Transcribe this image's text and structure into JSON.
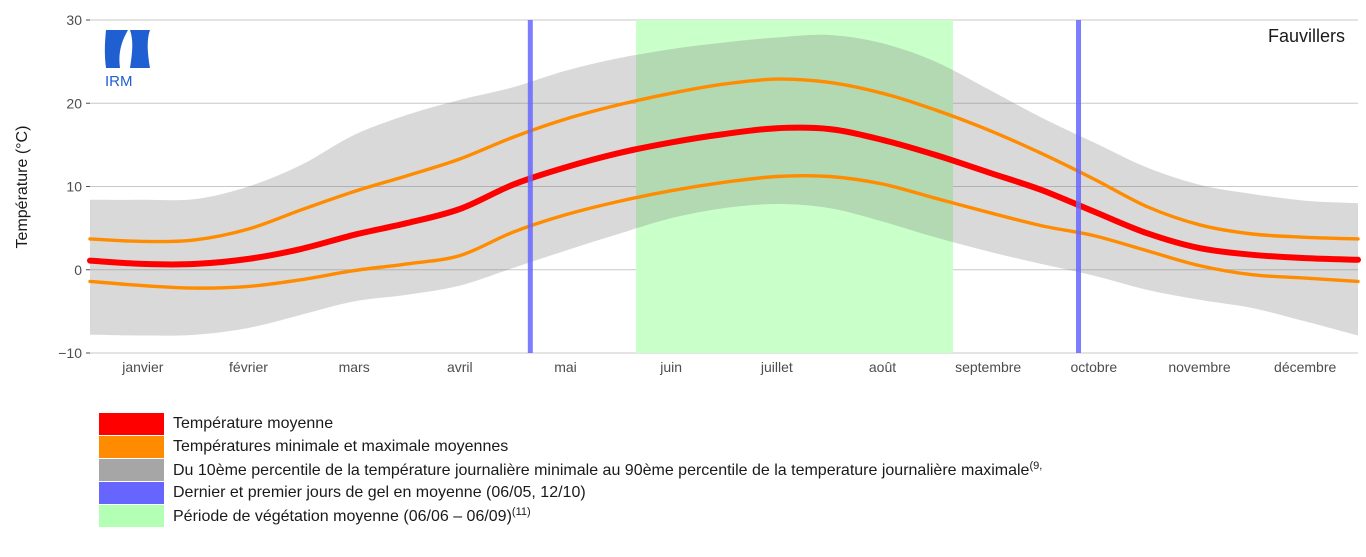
{
  "chart_data": {
    "type": "area",
    "station": "Fauvillers",
    "ylabel": "Température (°C)",
    "ylim": [
      -10,
      30
    ],
    "yticks": [
      -10,
      0,
      10,
      20,
      30
    ],
    "ytick_labels": [
      "−10",
      "0",
      "10",
      "20",
      "30"
    ],
    "grid": true,
    "x_domain": [
      0,
      12
    ],
    "months": [
      "janvier",
      "février",
      "mars",
      "avril",
      "mai",
      "juin",
      "juillet",
      "août",
      "septembre",
      "octobre",
      "novembre",
      "décembre"
    ],
    "x": [
      0,
      0.5,
      1,
      1.5,
      2,
      2.5,
      3,
      3.5,
      4,
      4.5,
      5,
      5.5,
      6,
      6.5,
      7,
      7.5,
      8,
      8.5,
      9,
      9.5,
      10,
      10.5,
      11,
      11.5,
      12
    ],
    "series": [
      {
        "name": "Température moyenne",
        "color": "#ff0000",
        "values": [
          1.1,
          0.7,
          0.7,
          1.3,
          2.5,
          4.2,
          5.6,
          7.3,
          10.2,
          12.3,
          14.0,
          15.3,
          16.3,
          17.0,
          16.9,
          15.6,
          13.8,
          11.7,
          9.6,
          7.0,
          4.4,
          2.6,
          1.8,
          1.4,
          1.2
        ]
      },
      {
        "name": "Température maximale moyenne",
        "color": "#ff8c00",
        "values": [
          3.7,
          3.4,
          3.6,
          4.9,
          7.2,
          9.4,
          11.3,
          13.3,
          15.9,
          18.1,
          19.8,
          21.2,
          22.3,
          22.9,
          22.5,
          21.2,
          19.2,
          16.8,
          14.0,
          10.9,
          7.6,
          5.4,
          4.3,
          3.9,
          3.7
        ]
      },
      {
        "name": "Température minimale moyenne",
        "color": "#ff8c00",
        "values": [
          -1.4,
          -1.9,
          -2.2,
          -2.0,
          -1.2,
          -0.1,
          0.7,
          1.7,
          4.5,
          6.6,
          8.2,
          9.5,
          10.5,
          11.2,
          11.2,
          10.3,
          8.6,
          6.9,
          5.3,
          4.1,
          2.3,
          0.5,
          -0.6,
          -1.0,
          -1.4
        ]
      }
    ],
    "band": {
      "name": "Du 10ème percentile de la température journalière minimale au 90ème percentile de la temperature journalière maximale",
      "color": "#d9d9d9",
      "lower": [
        -7.8,
        -7.9,
        -7.8,
        -7.0,
        -5.4,
        -3.8,
        -3.0,
        -1.9,
        0.2,
        2.3,
        4.3,
        6.2,
        7.4,
        7.9,
        7.4,
        5.8,
        3.9,
        2.2,
        0.7,
        -0.7,
        -2.4,
        -3.6,
        -4.6,
        -6.2,
        -7.9
      ],
      "upper": [
        8.4,
        8.4,
        8.5,
        10.0,
        12.6,
        16.2,
        18.6,
        20.4,
        21.9,
        23.9,
        25.4,
        26.5,
        27.3,
        27.9,
        28.2,
        27.2,
        25.0,
        21.7,
        18.3,
        15.3,
        12.3,
        10.2,
        9.1,
        8.3,
        8.0
      ]
    },
    "vegetation_period": {
      "start": 5.167,
      "end": 8.167,
      "color": "#c9ffc9",
      "label": "06/06 – 06/09"
    },
    "frost_lines": {
      "color": "#6666ff",
      "values": [
        4.167,
        9.355
      ],
      "labels": [
        "06/05",
        "12/10"
      ]
    }
  },
  "logo": {
    "text": "IRM",
    "color": "#1f5fd1"
  },
  "legend": [
    {
      "label": "Température moyenne",
      "color": "#ff0000",
      "sup": ""
    },
    {
      "label": "Températures minimale et maximale moyennes",
      "color": "#ff8c00",
      "sup": ""
    },
    {
      "label": "Du 10ème percentile de la température journalière minimale au 90ème percentile de la temperature journalière maximale",
      "color": "#a6a6a6",
      "sup": "(9,"
    },
    {
      "label": "Dernier et premier jours de gel en moyenne (06/05, 12/10)",
      "color": "#6666ff",
      "sup": ""
    },
    {
      "label": "Période de végétation moyenne (06/06 – 06/09)",
      "color": "#b3ffb3",
      "sup": "(11)"
    }
  ]
}
